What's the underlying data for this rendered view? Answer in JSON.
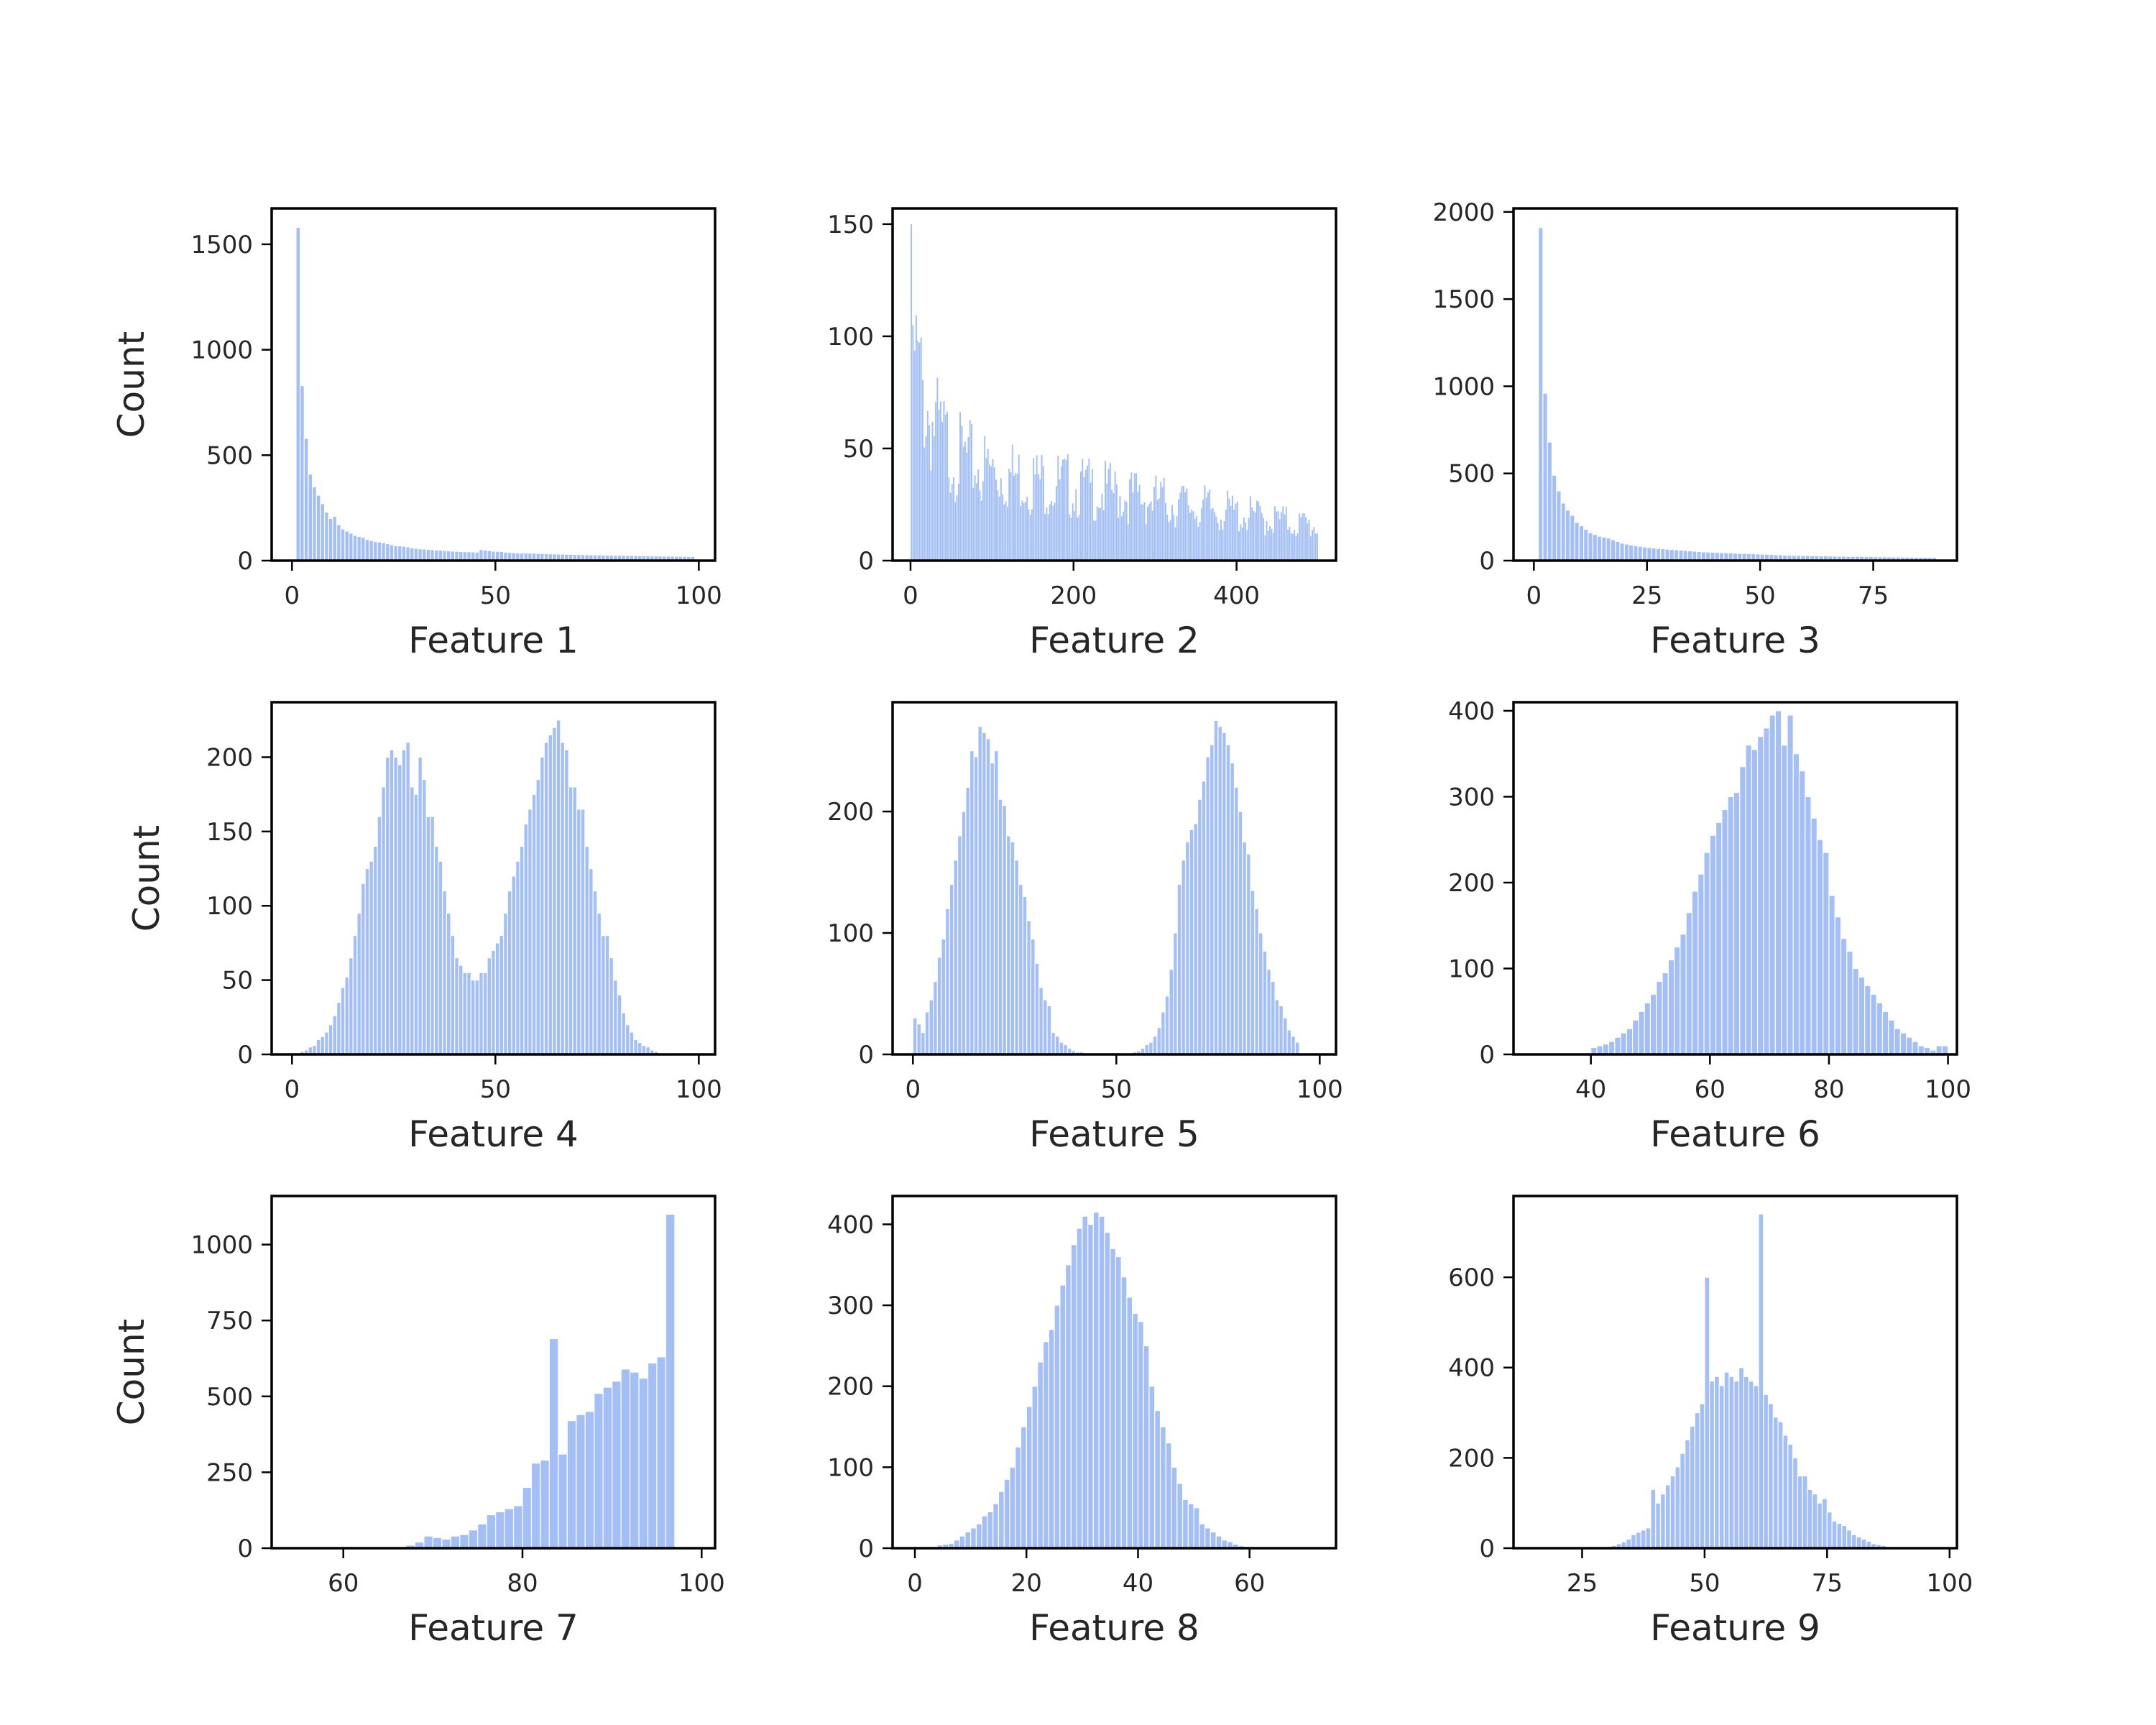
{
  "figure": {
    "bar_color": "#a3bff5",
    "bar_edge": "#ffffff",
    "frame_color": "#000000"
  },
  "chart_data": [
    {
      "type": "bar",
      "xlabel": "Feature 1",
      "ylabel": "Count",
      "xlim": [
        -5,
        104
      ],
      "ylim": [
        0,
        1670
      ],
      "xticks": [
        0,
        50,
        100
      ],
      "yticks": [
        0,
        500,
        1000,
        1500
      ],
      "bin_width": 1,
      "bin_start": 1,
      "values": [
        1580,
        830,
        580,
        410,
        350,
        310,
        270,
        230,
        200,
        210,
        170,
        150,
        140,
        130,
        120,
        115,
        110,
        100,
        95,
        90,
        88,
        85,
        80,
        75,
        70,
        70,
        68,
        65,
        60,
        58,
        56,
        55,
        53,
        52,
        50,
        50,
        48,
        46,
        45,
        44,
        43,
        42,
        42,
        41,
        40,
        52,
        50,
        48,
        45,
        44,
        43,
        40,
        39,
        38,
        37,
        36,
        36,
        35,
        35,
        34,
        34,
        33,
        32,
        32,
        31,
        31,
        30,
        30,
        29,
        29,
        28,
        28,
        27,
        27,
        27,
        26,
        26,
        26,
        25,
        25,
        25,
        24,
        24,
        24,
        23,
        23,
        23,
        22,
        22,
        22,
        21,
        21,
        21,
        20,
        20,
        20,
        19,
        19
      ]
    },
    {
      "type": "bar",
      "xlabel": "Feature 2",
      "ylabel": "",
      "xlim": [
        -22,
        522
      ],
      "ylim": [
        0,
        157
      ],
      "xticks": [
        0,
        200,
        400
      ],
      "yticks": [
        0,
        50,
        100,
        150
      ],
      "bin_width": 2,
      "bin_start": 0,
      "decay": {
        "peak": 150,
        "second": 105,
        "tau": 12,
        "tail_start": 45,
        "tail_end": 15,
        "bins": 250
      }
    },
    {
      "type": "bar",
      "xlabel": "Feature 3",
      "ylabel": "",
      "xlim": [
        -4.5,
        93.5
      ],
      "ylim": [
        0,
        2020
      ],
      "xticks": [
        0,
        25,
        50,
        75
      ],
      "yticks": [
        0,
        500,
        1000,
        1500,
        2000
      ],
      "bin_width": 1,
      "bin_start": 1,
      "values": [
        1910,
        960,
        680,
        490,
        400,
        330,
        290,
        260,
        220,
        200,
        180,
        160,
        150,
        140,
        135,
        130,
        120,
        110,
        100,
        95,
        90,
        85,
        82,
        78,
        75,
        72,
        70,
        68,
        66,
        64,
        62,
        60,
        58,
        56,
        54,
        52,
        50,
        49,
        48,
        47,
        46,
        45,
        44,
        43,
        42,
        41,
        40,
        39,
        38,
        37,
        36,
        35,
        34,
        33,
        32,
        31,
        30,
        30,
        29,
        29,
        28,
        28,
        27,
        27,
        26,
        26,
        25,
        25,
        24,
        24,
        24,
        23,
        23,
        23,
        22,
        22,
        22,
        21,
        21,
        21,
        20,
        20,
        20,
        19,
        19,
        19,
        18,
        18
      ]
    },
    {
      "type": "bar",
      "xlabel": "Feature 4",
      "ylabel": "Count",
      "xlim": [
        -5,
        104
      ],
      "ylim": [
        0,
        237
      ],
      "xticks": [
        0,
        50,
        100
      ],
      "yticks": [
        0,
        50,
        100,
        150,
        200
      ],
      "bin_width": 1,
      "bin_start": 1,
      "values": [
        0,
        2,
        3,
        5,
        6,
        10,
        12,
        15,
        20,
        26,
        35,
        45,
        52,
        65,
        80,
        95,
        115,
        125,
        130,
        140,
        160,
        180,
        200,
        205,
        200,
        195,
        205,
        210,
        180,
        175,
        200,
        185,
        160,
        160,
        140,
        130,
        110,
        95,
        80,
        65,
        60,
        55,
        55,
        50,
        50,
        55,
        55,
        65,
        70,
        75,
        80,
        95,
        110,
        120,
        130,
        140,
        155,
        165,
        175,
        185,
        200,
        210,
        215,
        220,
        225,
        210,
        205,
        180,
        180,
        165,
        165,
        140,
        125,
        110,
        95,
        80,
        80,
        65,
        50,
        40,
        28,
        20,
        15,
        10,
        8,
        6,
        5,
        3,
        2,
        1
      ],
      "offset": 0
    },
    {
      "type": "bar",
      "xlabel": "Feature 5",
      "ylabel": "",
      "xlim": [
        -5,
        104
      ],
      "ylim": [
        0,
        290
      ],
      "xticks": [
        0,
        50,
        100
      ],
      "yticks": [
        0,
        100,
        200
      ],
      "bin_width": 1,
      "bin_start": 0,
      "values": [
        30,
        25,
        18,
        35,
        45,
        60,
        80,
        95,
        120,
        140,
        160,
        180,
        200,
        220,
        250,
        245,
        270,
        265,
        260,
        240,
        250,
        210,
        205,
        180,
        175,
        160,
        140,
        130,
        110,
        95,
        75,
        55,
        45,
        40,
        18,
        15,
        10,
        8,
        5,
        3,
        2,
        2,
        1,
        1,
        0,
        0,
        0,
        0,
        0,
        0,
        0,
        0,
        1,
        1,
        2,
        3,
        5,
        8,
        10,
        15,
        22,
        35,
        48,
        70,
        100,
        140,
        160,
        175,
        185,
        190,
        210,
        225,
        245,
        255,
        275,
        270,
        265,
        255,
        240,
        220,
        200,
        175,
        165,
        135,
        120,
        100,
        85,
        70,
        60,
        45,
        40,
        30,
        20,
        15,
        10
      ]
    },
    {
      "type": "bar",
      "xlabel": "Feature 6",
      "ylabel": "",
      "xlim": [
        27,
        101.5
      ],
      "ylim": [
        0,
        410
      ],
      "xticks": [
        40,
        60,
        80,
        100
      ],
      "yticks": [
        0,
        100,
        200,
        300,
        400
      ],
      "bin_width": 1,
      "bin_start": 40,
      "values": [
        8,
        10,
        12,
        15,
        20,
        25,
        30,
        40,
        50,
        60,
        70,
        85,
        95,
        110,
        125,
        140,
        165,
        190,
        210,
        235,
        255,
        270,
        285,
        300,
        305,
        335,
        360,
        355,
        370,
        380,
        395,
        400,
        360,
        395,
        350,
        330,
        300,
        275,
        250,
        235,
        185,
        160,
        135,
        120,
        100,
        90,
        80,
        70,
        60,
        50,
        40,
        30,
        25,
        20,
        15,
        10,
        8,
        5,
        10,
        10
      ]
    },
    {
      "type": "bar",
      "xlabel": "Feature 7",
      "ylabel": "Count",
      "xlim": [
        52,
        101.5
      ],
      "ylim": [
        0,
        1160
      ],
      "xticks": [
        60,
        80,
        100
      ],
      "yticks": [
        0,
        250,
        500,
        750,
        1000
      ],
      "bin_width": 1,
      "bin_start": 67,
      "values": [
        10,
        20,
        40,
        35,
        30,
        40,
        45,
        60,
        80,
        110,
        120,
        130,
        140,
        200,
        280,
        290,
        690,
        310,
        420,
        440,
        450,
        510,
        530,
        550,
        590,
        580,
        560,
        610,
        630,
        1100
      ]
    },
    {
      "type": "bar",
      "xlabel": "Feature 8",
      "ylabel": "",
      "xlim": [
        -4,
        75.5
      ],
      "ylim": [
        0,
        435
      ],
      "xticks": [
        0,
        20,
        40,
        60
      ],
      "yticks": [
        0,
        100,
        200,
        300,
        400
      ],
      "bin_width": 1,
      "bin_start": 3,
      "values": [
        2,
        4,
        5,
        6,
        10,
        15,
        20,
        25,
        30,
        40,
        45,
        55,
        70,
        85,
        100,
        125,
        150,
        175,
        200,
        230,
        255,
        270,
        300,
        325,
        350,
        375,
        395,
        410,
        400,
        415,
        410,
        390,
        370,
        360,
        335,
        310,
        290,
        280,
        250,
        200,
        170,
        150,
        130,
        100,
        80,
        60,
        55,
        50,
        30,
        25,
        20,
        15,
        10,
        8,
        5,
        3,
        2,
        2,
        1,
        1,
        1,
        1
      ]
    },
    {
      "type": "bar",
      "xlabel": "Feature 9",
      "ylabel": "",
      "xlim": [
        11,
        101.5
      ],
      "ylim": [
        0,
        780
      ],
      "xticks": [
        25,
        50,
        75,
        100
      ],
      "yticks": [
        0,
        200,
        400,
        600
      ],
      "bin_width": 1,
      "bin_start": 29,
      "values": [
        2,
        4,
        6,
        10,
        14,
        20,
        30,
        35,
        40,
        45,
        130,
        100,
        120,
        140,
        160,
        180,
        210,
        240,
        270,
        300,
        320,
        600,
        370,
        380,
        360,
        390,
        380,
        370,
        400,
        380,
        370,
        360,
        740,
        340,
        320,
        290,
        280,
        250,
        230,
        200,
        160,
        160,
        130,
        120,
        100,
        110,
        80,
        60,
        55,
        50,
        40,
        30,
        25,
        20,
        15,
        10,
        8,
        6,
        4,
        3,
        2,
        1,
        1
      ]
    }
  ]
}
